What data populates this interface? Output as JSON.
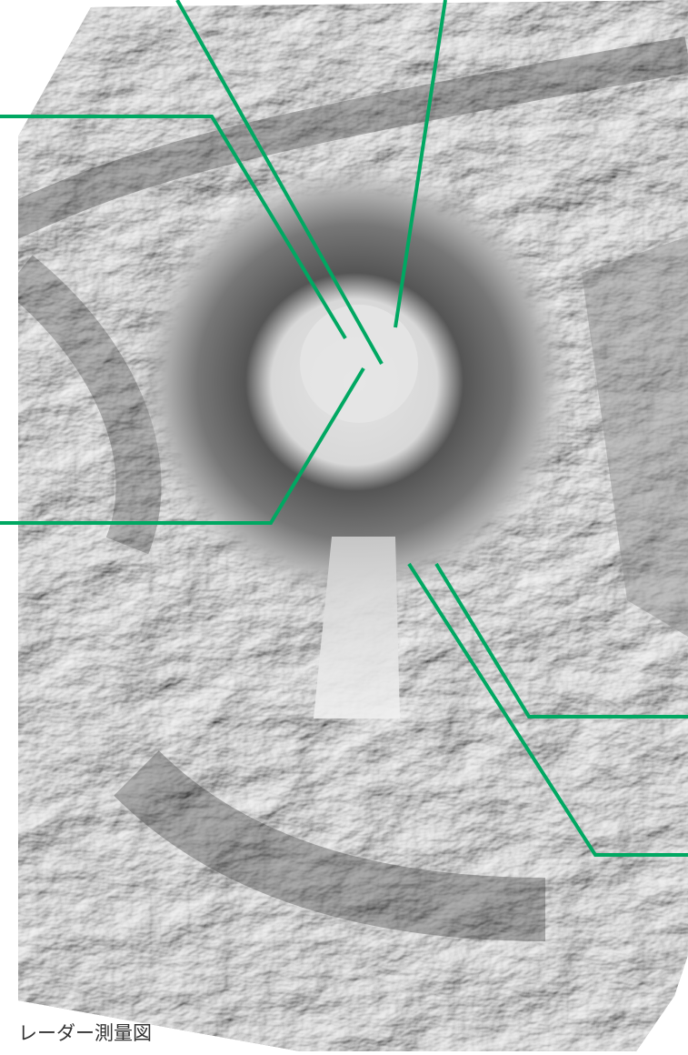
{
  "caption": "レーダー測量図"
}
